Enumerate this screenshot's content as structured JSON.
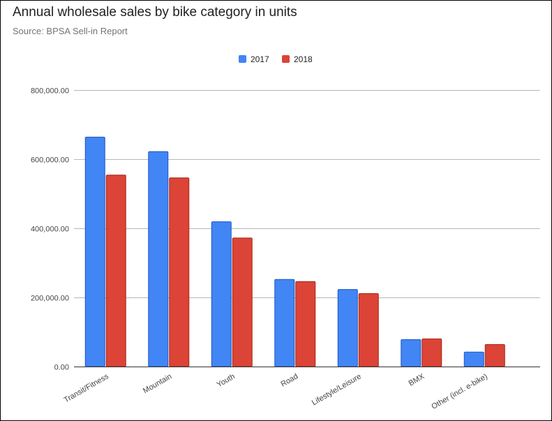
{
  "chart_data": {
    "type": "bar",
    "title": "Annual wholesale sales by bike category in units",
    "subtitle": "Source: BPSA Sell-in Report",
    "categories": [
      "Transit/Fitness",
      "Mountain",
      "Youth",
      "Road",
      "Lifestyle/Leisure",
      "BMX",
      "Other (incl. e-bike)"
    ],
    "series": [
      {
        "name": "2017",
        "values": [
          664000,
          622000,
          419000,
          252000,
          223000,
          78000,
          42000
        ],
        "color": "#4285f4"
      },
      {
        "name": "2018",
        "values": [
          554000,
          546000,
          372000,
          246000,
          211000,
          80000,
          64000
        ],
        "color": "#db4437"
      }
    ],
    "ylim": [
      0,
      800000
    ],
    "yticks": [
      0,
      200000,
      400000,
      600000,
      800000
    ],
    "ytick_labels": [
      "0.00",
      "200,000.00",
      "400,000.00",
      "600,000.00",
      "800,000.00"
    ],
    "grid": true,
    "legend_position": "top"
  }
}
